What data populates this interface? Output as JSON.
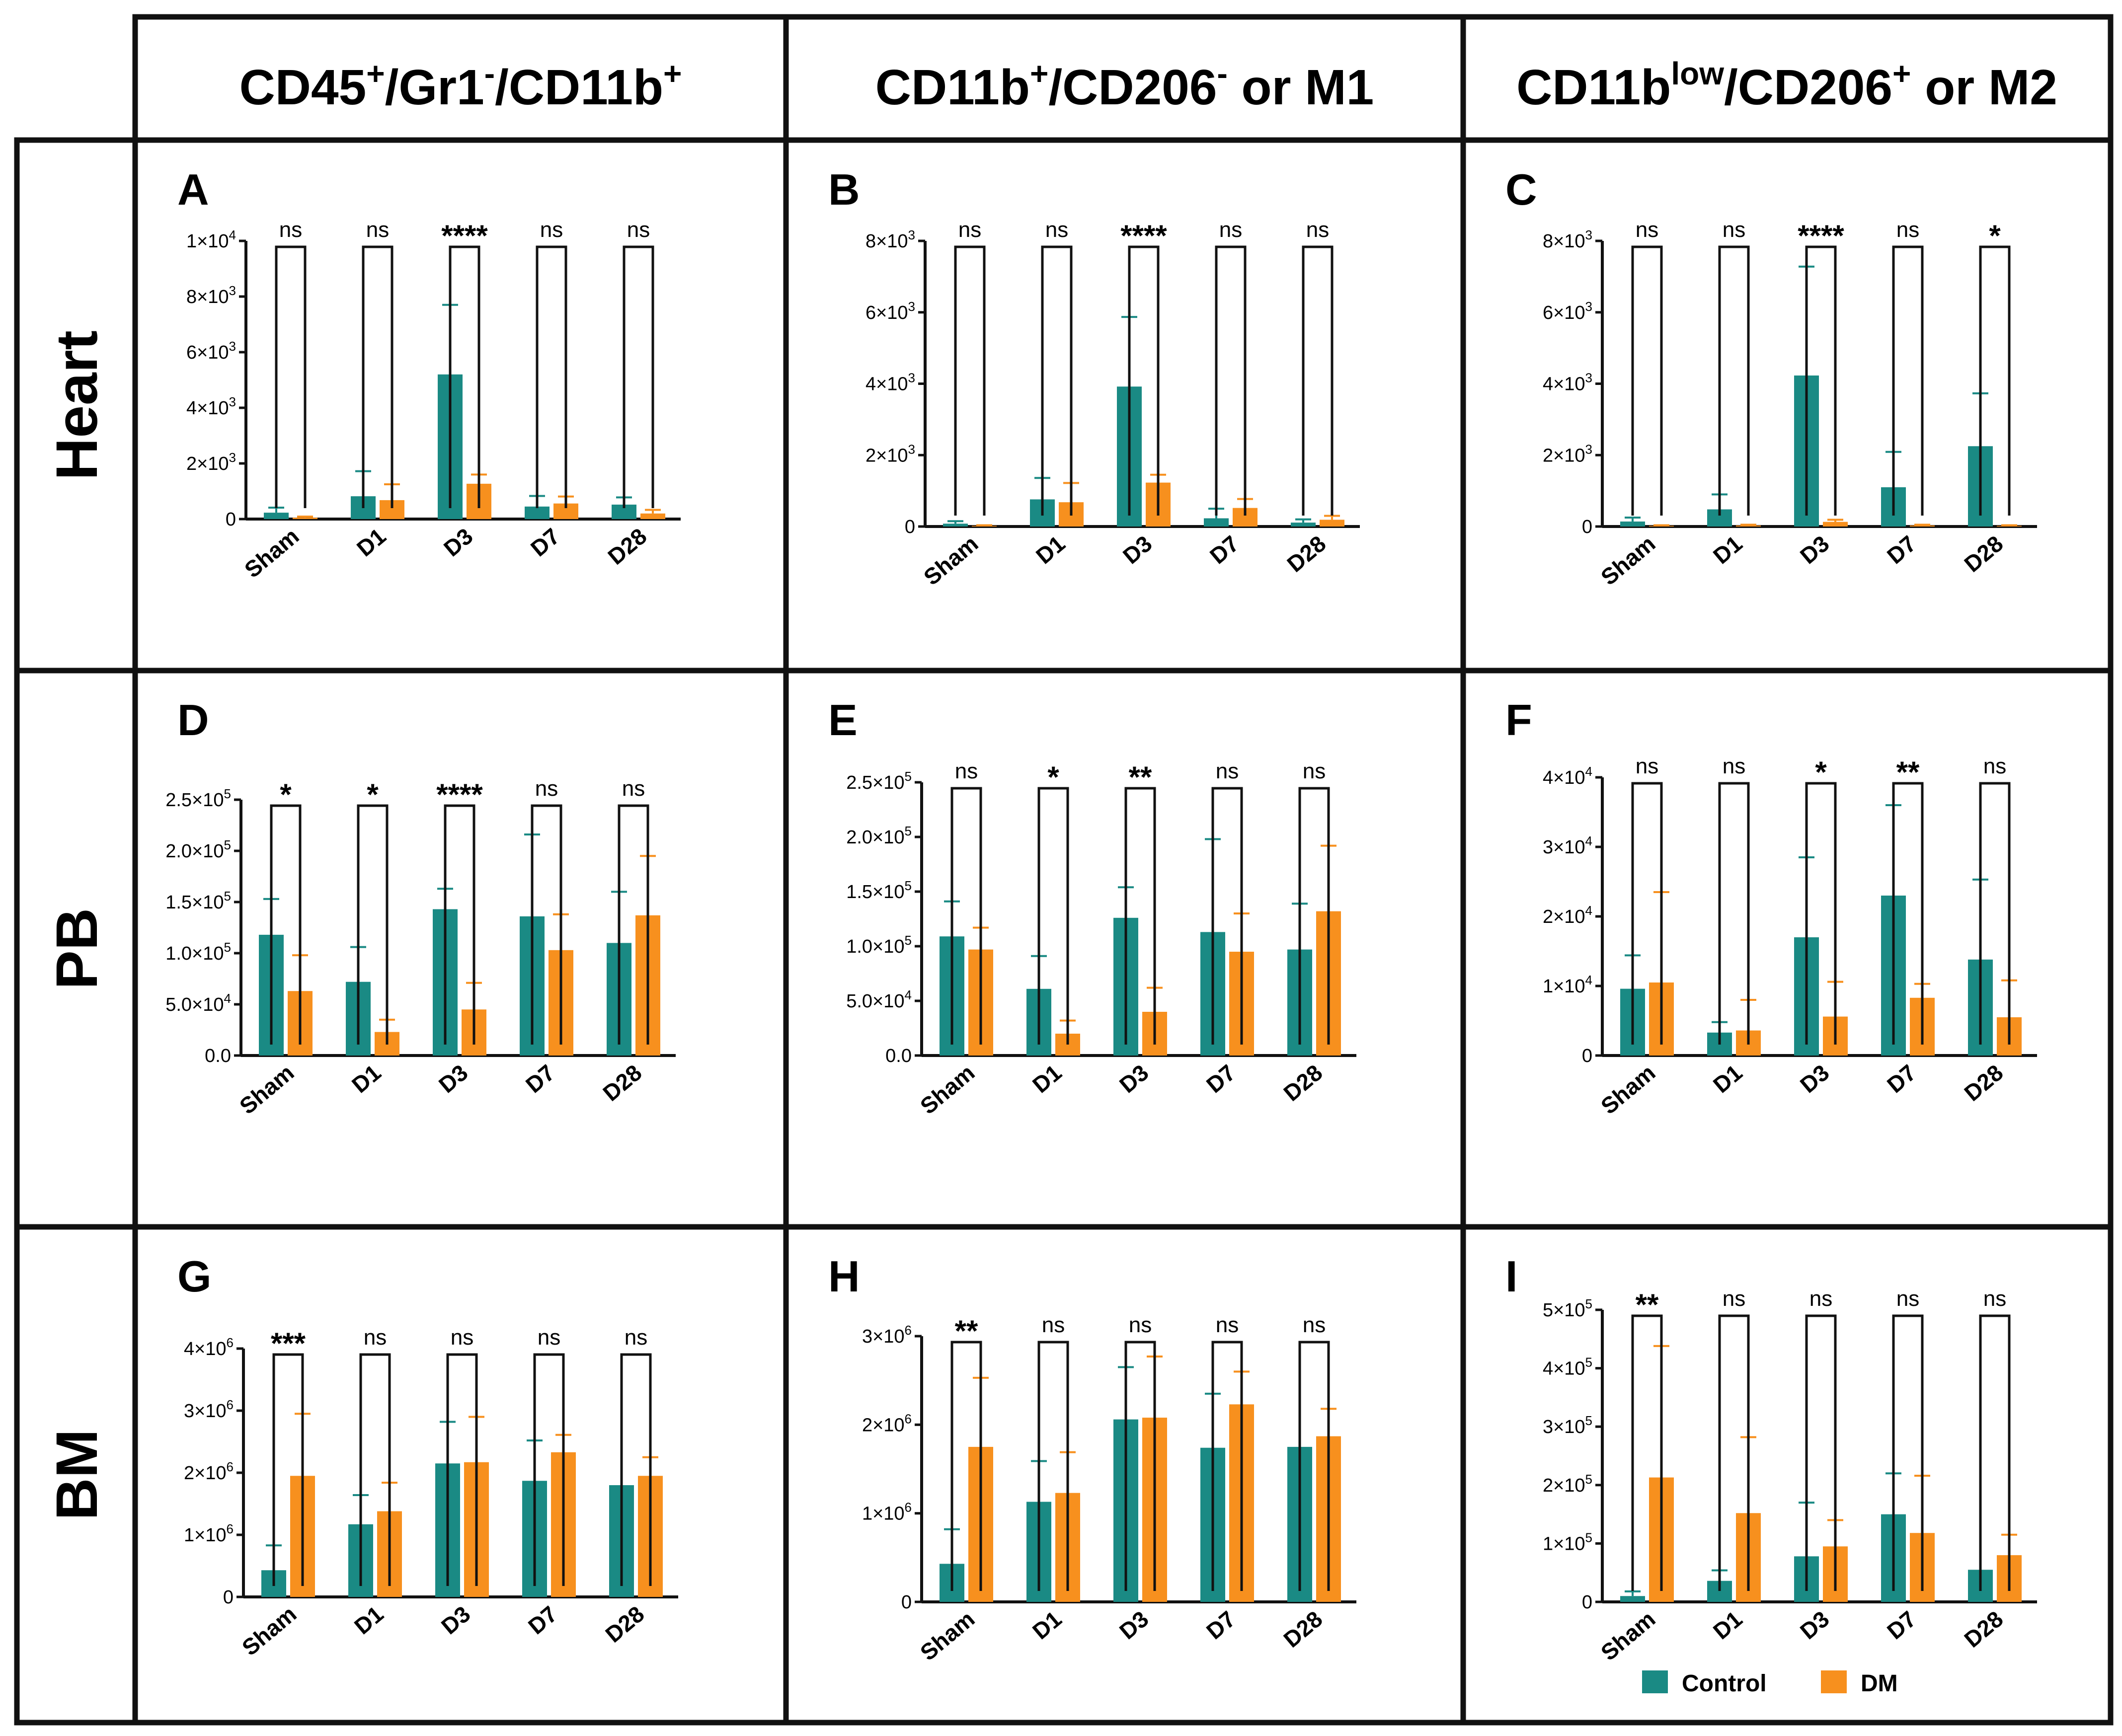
{
  "figure": {
    "column_headers": [
      {
        "parts": [
          [
            "CD45",
            ""
          ],
          [
            "+",
            "sup"
          ],
          [
            "/Gr1",
            ""
          ],
          [
            "-",
            "sup"
          ],
          [
            "/CD11b",
            ""
          ],
          [
            "+",
            "sup"
          ]
        ],
        "text": "CD45+/Gr1-/CD11b+"
      },
      {
        "parts": [
          [
            "CD11b",
            ""
          ],
          [
            "+",
            "sup"
          ],
          [
            "/CD206",
            ""
          ],
          [
            "-",
            "sup"
          ],
          [
            " or M1",
            ""
          ]
        ],
        "text": "CD11b+/CD206- or M1"
      },
      {
        "parts": [
          [
            "CD11b",
            ""
          ],
          [
            "low",
            "sup"
          ],
          [
            "/CD206",
            ""
          ],
          [
            "+",
            "sup"
          ],
          [
            " or M2",
            ""
          ]
        ],
        "text": "CD11blow/CD206+ or M2"
      }
    ],
    "row_headers": [
      "Heart",
      "PB",
      "BM"
    ],
    "legend": [
      {
        "label": "Control",
        "color": "#1a8a84"
      },
      {
        "label": "DM",
        "color": "#f7901e"
      }
    ]
  },
  "chart_data": [
    {
      "panel": "A",
      "type": "bar",
      "categories": [
        "Sham",
        "D1",
        "D3",
        "D7",
        "D28"
      ],
      "series": [
        {
          "name": "Control",
          "values": [
            230,
            820,
            5200,
            450,
            520
          ],
          "errors": [
            180,
            900,
            2500,
            380,
            260
          ]
        },
        {
          "name": "DM",
          "values": [
            50,
            680,
            1270,
            560,
            200
          ],
          "errors": [
            40,
            570,
            330,
            250,
            130
          ]
        }
      ],
      "ylim": [
        0,
        10000
      ],
      "yticks": [
        {
          "v": 0,
          "m": "0",
          "e": ""
        },
        {
          "v": 2000,
          "m": "2×10",
          "e": "3"
        },
        {
          "v": 4000,
          "m": "4×10",
          "e": "3"
        },
        {
          "v": 6000,
          "m": "6×10",
          "e": "3"
        },
        {
          "v": 8000,
          "m": "8×10",
          "e": "3"
        },
        {
          "v": 10000,
          "m": "1×10",
          "e": "4"
        }
      ],
      "significance": [
        "ns",
        "ns",
        "****",
        "ns",
        "ns"
      ]
    },
    {
      "panel": "B",
      "type": "bar",
      "categories": [
        "Sham",
        "D1",
        "D3",
        "D7",
        "D28"
      ],
      "series": [
        {
          "name": "Control",
          "values": [
            80,
            760,
            3920,
            230,
            110
          ],
          "errors": [
            70,
            600,
            1950,
            270,
            90
          ]
        },
        {
          "name": "DM",
          "values": [
            20,
            680,
            1230,
            520,
            190
          ],
          "errors": [
            15,
            540,
            220,
            250,
            110
          ]
        }
      ],
      "ylim": [
        0,
        8000
      ],
      "yticks": [
        {
          "v": 0,
          "m": "0",
          "e": ""
        },
        {
          "v": 2000,
          "m": "2×10",
          "e": "3"
        },
        {
          "v": 4000,
          "m": "4×10",
          "e": "3"
        },
        {
          "v": 6000,
          "m": "6×10",
          "e": "3"
        },
        {
          "v": 8000,
          "m": "8×10",
          "e": "3"
        }
      ],
      "significance": [
        "ns",
        "ns",
        "****",
        "ns",
        "ns"
      ]
    },
    {
      "panel": "C",
      "type": "bar",
      "categories": [
        "Sham",
        "D1",
        "D3",
        "D7",
        "D28"
      ],
      "series": [
        {
          "name": "Control",
          "values": [
            140,
            480,
            4230,
            1100,
            2250
          ],
          "errors": [
            110,
            420,
            3050,
            990,
            1480
          ]
        },
        {
          "name": "DM",
          "values": [
            20,
            30,
            130,
            30,
            20
          ],
          "errors": [
            15,
            20,
            60,
            20,
            15
          ]
        }
      ],
      "ylim": [
        0,
        8000
      ],
      "yticks": [
        {
          "v": 0,
          "m": "0",
          "e": ""
        },
        {
          "v": 2000,
          "m": "2×10",
          "e": "3"
        },
        {
          "v": 4000,
          "m": "4×10",
          "e": "3"
        },
        {
          "v": 6000,
          "m": "6×10",
          "e": "3"
        },
        {
          "v": 8000,
          "m": "8×10",
          "e": "3"
        }
      ],
      "significance": [
        "ns",
        "ns",
        "****",
        "ns",
        "*"
      ]
    },
    {
      "panel": "D",
      "type": "bar",
      "categories": [
        "Sham",
        "D1",
        "D3",
        "D7",
        "D28"
      ],
      "series": [
        {
          "name": "Control",
          "values": [
            118000,
            72000,
            143000,
            136000,
            110000
          ],
          "errors": [
            35000,
            34000,
            20000,
            80000,
            50000
          ]
        },
        {
          "name": "DM",
          "values": [
            63000,
            23000,
            45000,
            103000,
            137000
          ],
          "errors": [
            35000,
            12000,
            26000,
            35000,
            58000
          ]
        }
      ],
      "ylim": [
        0,
        250000
      ],
      "yticks": [
        {
          "v": 0,
          "m": "0.0",
          "e": ""
        },
        {
          "v": 50000,
          "m": "5.0×10",
          "e": "4"
        },
        {
          "v": 100000,
          "m": "1.0×10",
          "e": "5"
        },
        {
          "v": 150000,
          "m": "1.5×10",
          "e": "5"
        },
        {
          "v": 200000,
          "m": "2.0×10",
          "e": "5"
        },
        {
          "v": 250000,
          "m": "2.5×10",
          "e": "5"
        }
      ],
      "significance": [
        "*",
        "*",
        "****",
        "ns",
        "ns"
      ]
    },
    {
      "panel": "E",
      "type": "bar",
      "categories": [
        "Sham",
        "D1",
        "D3",
        "D7",
        "D28"
      ],
      "series": [
        {
          "name": "Control",
          "values": [
            109000,
            61000,
            126000,
            113000,
            97000
          ],
          "errors": [
            32000,
            30000,
            28000,
            85000,
            42000
          ]
        },
        {
          "name": "DM",
          "values": [
            97000,
            20000,
            40000,
            95000,
            132000
          ],
          "errors": [
            20000,
            12000,
            22000,
            35000,
            60000
          ]
        }
      ],
      "ylim": [
        0,
        250000
      ],
      "yticks": [
        {
          "v": 0,
          "m": "0.0",
          "e": ""
        },
        {
          "v": 50000,
          "m": "5.0×10",
          "e": "4"
        },
        {
          "v": 100000,
          "m": "1.0×10",
          "e": "5"
        },
        {
          "v": 150000,
          "m": "1.5×10",
          "e": "5"
        },
        {
          "v": 200000,
          "m": "2.0×10",
          "e": "5"
        },
        {
          "v": 250000,
          "m": "2.5×10",
          "e": "5"
        }
      ],
      "significance": [
        "ns",
        "*",
        "**",
        "ns",
        "ns"
      ]
    },
    {
      "panel": "F",
      "type": "bar",
      "categories": [
        "Sham",
        "D1",
        "D3",
        "D7",
        "D28"
      ],
      "series": [
        {
          "name": "Control",
          "values": [
            9600,
            3300,
            17000,
            23000,
            13800
          ],
          "errors": [
            4800,
            1500,
            11500,
            13000,
            11500
          ]
        },
        {
          "name": "DM",
          "values": [
            10500,
            3600,
            5600,
            8300,
            5500
          ],
          "errors": [
            13000,
            4400,
            5000,
            2000,
            5300
          ]
        }
      ],
      "ylim": [
        0,
        40000
      ],
      "yticks": [
        {
          "v": 0,
          "m": "0",
          "e": ""
        },
        {
          "v": 10000,
          "m": "1×10",
          "e": "4"
        },
        {
          "v": 20000,
          "m": "2×10",
          "e": "4"
        },
        {
          "v": 30000,
          "m": "3×10",
          "e": "4"
        },
        {
          "v": 40000,
          "m": "4×10",
          "e": "4"
        }
      ],
      "significance": [
        "ns",
        "ns",
        "*",
        "**",
        "ns"
      ]
    },
    {
      "panel": "G",
      "type": "bar",
      "categories": [
        "Sham",
        "D1",
        "D3",
        "D7",
        "D28"
      ],
      "series": [
        {
          "name": "Control",
          "values": [
            430000,
            1170000,
            2150000,
            1870000,
            1800000
          ],
          "errors": [
            400000,
            470000,
            670000,
            650000,
            0
          ]
        },
        {
          "name": "DM",
          "values": [
            1950000,
            1380000,
            2170000,
            2330000,
            1950000
          ],
          "errors": [
            1000000,
            460000,
            730000,
            280000,
            300000
          ]
        }
      ],
      "ylim": [
        0,
        4000000
      ],
      "yticks": [
        {
          "v": 0,
          "m": "0",
          "e": ""
        },
        {
          "v": 1000000,
          "m": "1×10",
          "e": "6"
        },
        {
          "v": 2000000,
          "m": "2×10",
          "e": "6"
        },
        {
          "v": 3000000,
          "m": "3×10",
          "e": "6"
        },
        {
          "v": 4000000,
          "m": "4×10",
          "e": "6"
        }
      ],
      "significance": [
        "***",
        "ns",
        "ns",
        "ns",
        "ns"
      ]
    },
    {
      "panel": "H",
      "type": "bar",
      "categories": [
        "Sham",
        "D1",
        "D3",
        "D7",
        "D28"
      ],
      "series": [
        {
          "name": "Control",
          "values": [
            430000,
            1130000,
            2060000,
            1740000,
            1750000
          ],
          "errors": [
            390000,
            460000,
            590000,
            610000,
            0
          ]
        },
        {
          "name": "DM",
          "values": [
            1750000,
            1230000,
            2080000,
            2230000,
            1870000
          ],
          "errors": [
            780000,
            460000,
            690000,
            370000,
            310000
          ]
        }
      ],
      "ylim": [
        0,
        3000000
      ],
      "yticks": [
        {
          "v": 0,
          "m": "0",
          "e": ""
        },
        {
          "v": 1000000,
          "m": "1×10",
          "e": "6"
        },
        {
          "v": 2000000,
          "m": "2×10",
          "e": "6"
        },
        {
          "v": 3000000,
          "m": "3×10",
          "e": "6"
        }
      ],
      "significance": [
        "**",
        "ns",
        "ns",
        "ns",
        "ns"
      ]
    },
    {
      "panel": "I",
      "type": "bar",
      "categories": [
        "Sham",
        "D1",
        "D3",
        "D7",
        "D28"
      ],
      "series": [
        {
          "name": "Control",
          "values": [
            10000,
            36000,
            78000,
            150000,
            55000
          ],
          "errors": [
            8000,
            18000,
            92000,
            70000,
            0
          ]
        },
        {
          "name": "DM",
          "values": [
            213000,
            152000,
            95000,
            118000,
            80000
          ],
          "errors": [
            225000,
            130000,
            45000,
            98000,
            35000
          ]
        }
      ],
      "ylim": [
        0,
        500000
      ],
      "yticks": [
        {
          "v": 0,
          "m": "0",
          "e": ""
        },
        {
          "v": 100000,
          "m": "1×10",
          "e": "5"
        },
        {
          "v": 200000,
          "m": "2×10",
          "e": "5"
        },
        {
          "v": 300000,
          "m": "3×10",
          "e": "5"
        },
        {
          "v": 400000,
          "m": "4×10",
          "e": "5"
        },
        {
          "v": 500000,
          "m": "5×10",
          "e": "5"
        }
      ],
      "significance": [
        "**",
        "ns",
        "ns",
        "ns",
        "ns"
      ]
    }
  ]
}
